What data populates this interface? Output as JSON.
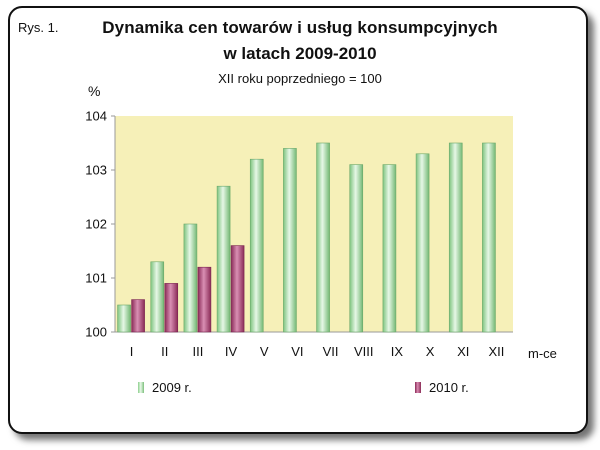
{
  "figure_label": "Rys. 1.",
  "colors": {
    "series_2009": "#a8dca8",
    "series_2010": "#b0477c",
    "plot_bg": "#f6f0b8"
  },
  "chart_data": {
    "type": "bar",
    "title_line1": "Dynamika cen towarów i usług konsumpcyjnych",
    "title_line2": "w latach 2009-2010",
    "subtitle": "XII roku poprzedniego = 100",
    "ylabel": "%",
    "xlabel": "m-ce",
    "ylim": [
      100,
      104
    ],
    "yticks": [
      "100",
      "101",
      "102",
      "103",
      "104"
    ],
    "grid": false,
    "legend_position": "bottom",
    "categories": [
      "I",
      "II",
      "III",
      "IV",
      "V",
      "VI",
      "VII",
      "VIII",
      "IX",
      "X",
      "XI",
      "XII"
    ],
    "series": [
      {
        "name": "2009 r.",
        "values": [
          100.5,
          101.3,
          102.0,
          102.7,
          103.2,
          103.4,
          103.5,
          103.1,
          103.1,
          103.3,
          103.5,
          103.5
        ]
      },
      {
        "name": "2010 r.",
        "values": [
          100.6,
          100.9,
          101.2,
          101.6,
          null,
          null,
          null,
          null,
          null,
          null,
          null,
          null
        ]
      }
    ]
  }
}
